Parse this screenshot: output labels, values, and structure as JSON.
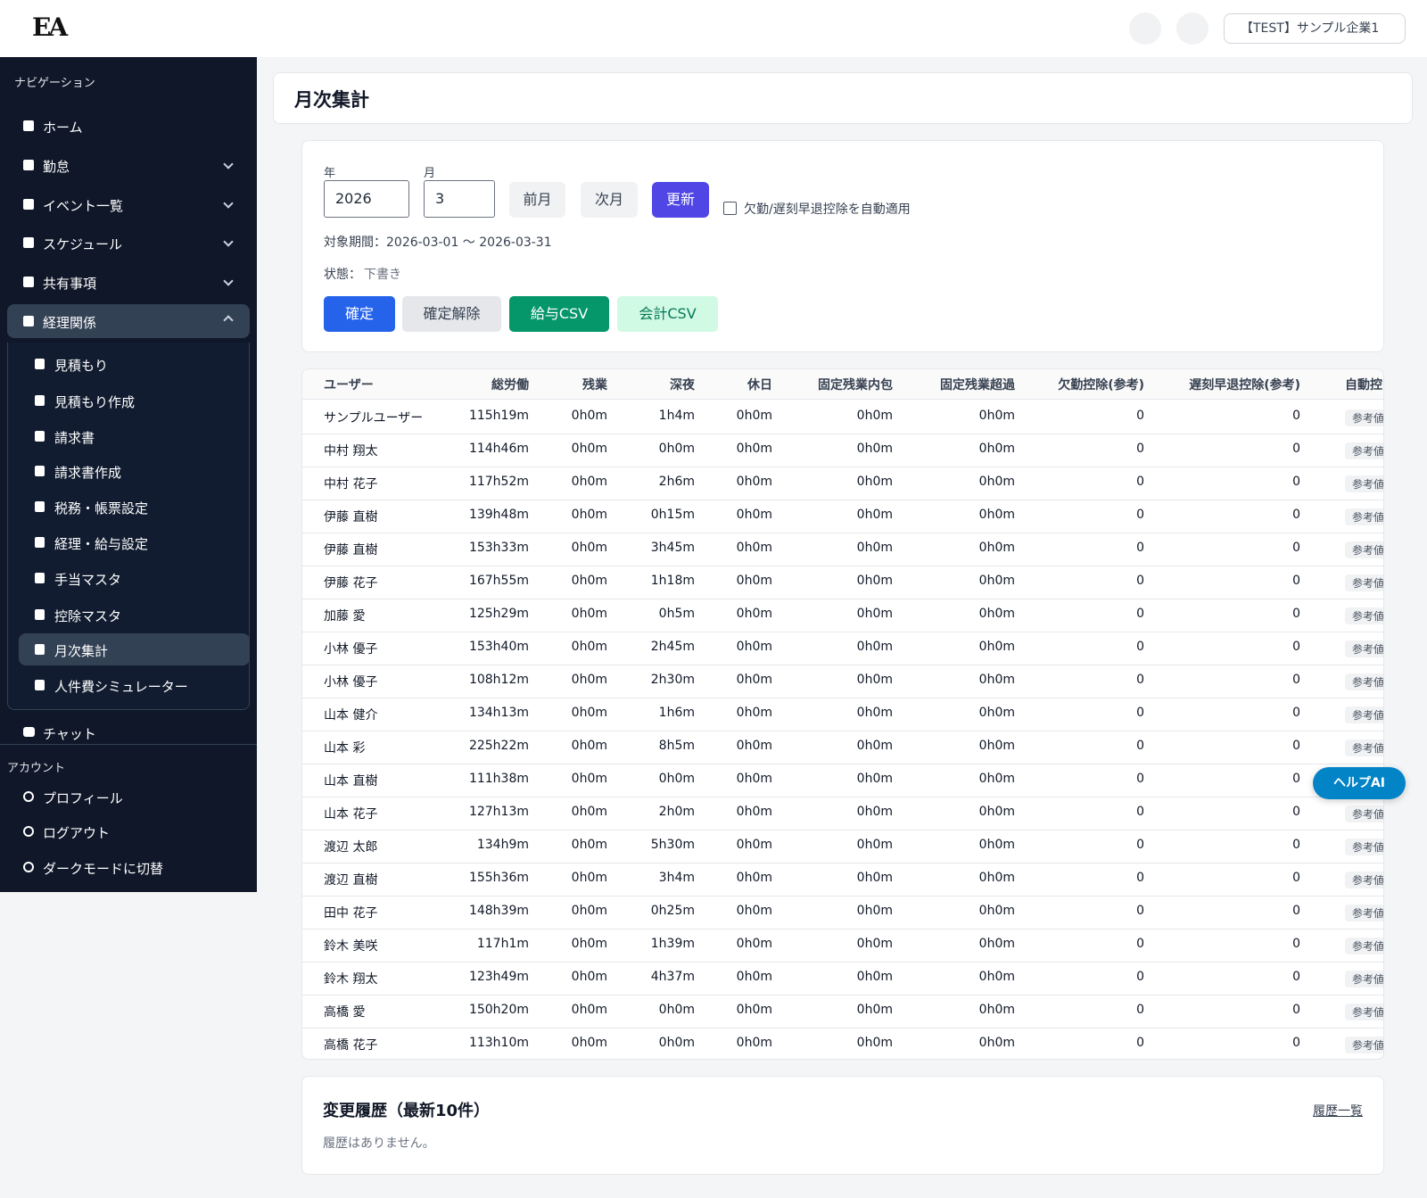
{
  "header": {
    "logo": "EA",
    "company": "【TEST】サンプル企業1"
  },
  "sidebar": {
    "title": "ナビゲーション",
    "items": [
      {
        "label": "ホーム"
      },
      {
        "label": "勤怠"
      },
      {
        "label": "イベント一覧"
      },
      {
        "label": "スケジュール"
      },
      {
        "label": "共有事項"
      },
      {
        "label": "経理関係"
      }
    ],
    "sub_items": [
      {
        "label": "見積もり"
      },
      {
        "label": "見積もり作成"
      },
      {
        "label": "請求書"
      },
      {
        "label": "請求書作成"
      },
      {
        "label": "税務・帳票設定"
      },
      {
        "label": "経理・給与設定"
      },
      {
        "label": "手当マスタ"
      },
      {
        "label": "控除マスタ"
      },
      {
        "label": "月次集計"
      },
      {
        "label": "人件費シミュレーター"
      }
    ],
    "chat": "チャット",
    "account_title": "アカウント",
    "account_items": [
      {
        "label": "プロフィール"
      },
      {
        "label": "ログアウト"
      },
      {
        "label": "ダークモードに切替"
      }
    ]
  },
  "page": {
    "title": "月次集計"
  },
  "form": {
    "year_label": "年",
    "year_value": "2026",
    "month_label": "月",
    "month_value": "3",
    "buttons": [
      "前月",
      "次月",
      "更新"
    ],
    "checkbox_label": "欠勤/遅刻早退控除を自動適用",
    "period": "対象期間：2026-03-01 〜 2026-03-31",
    "status_label": "状態：",
    "status_value": "下書き",
    "actions": [
      "確定",
      "確定解除",
      "給与CSV",
      "会計CSV"
    ]
  },
  "table": {
    "headers": [
      "ユーザー",
      "総労働",
      "残業",
      "深夜",
      "休日",
      "固定残業内包",
      "固定残業超過",
      "欠勤控除(参考)",
      "遅刻早退控除(参考)",
      "自動控"
    ],
    "rows": [
      [
        "サンプルユーザー",
        "115h19m",
        "0h0m",
        "1h4m",
        "0h0m",
        "0h0m",
        "0h0m",
        "0",
        "0",
        "参考値"
      ],
      [
        "中村 翔太",
        "114h46m",
        "0h0m",
        "0h0m",
        "0h0m",
        "0h0m",
        "0h0m",
        "0",
        "0",
        "参考値"
      ],
      [
        "中村 花子",
        "117h52m",
        "0h0m",
        "2h6m",
        "0h0m",
        "0h0m",
        "0h0m",
        "0",
        "0",
        "参考値"
      ],
      [
        "伊藤 直樹",
        "139h48m",
        "0h0m",
        "0h15m",
        "0h0m",
        "0h0m",
        "0h0m",
        "0",
        "0",
        "参考値"
      ],
      [
        "伊藤 直樹",
        "153h33m",
        "0h0m",
        "3h45m",
        "0h0m",
        "0h0m",
        "0h0m",
        "0",
        "0",
        "参考値"
      ],
      [
        "伊藤 花子",
        "167h55m",
        "0h0m",
        "1h18m",
        "0h0m",
        "0h0m",
        "0h0m",
        "0",
        "0",
        "参考値"
      ],
      [
        "加藤 愛",
        "125h29m",
        "0h0m",
        "0h5m",
        "0h0m",
        "0h0m",
        "0h0m",
        "0",
        "0",
        "参考値"
      ],
      [
        "小林 優子",
        "153h40m",
        "0h0m",
        "2h45m",
        "0h0m",
        "0h0m",
        "0h0m",
        "0",
        "0",
        "参考値"
      ],
      [
        "小林 優子",
        "108h12m",
        "0h0m",
        "2h30m",
        "0h0m",
        "0h0m",
        "0h0m",
        "0",
        "0",
        "参考値"
      ],
      [
        "山本 健介",
        "134h13m",
        "0h0m",
        "1h6m",
        "0h0m",
        "0h0m",
        "0h0m",
        "0",
        "0",
        "参考値"
      ],
      [
        "山本 彩",
        "225h22m",
        "0h0m",
        "8h5m",
        "0h0m",
        "0h0m",
        "0h0m",
        "0",
        "0",
        "参考値"
      ],
      [
        "山本 直樹",
        "111h38m",
        "0h0m",
        "0h0m",
        "0h0m",
        "0h0m",
        "0h0m",
        "0",
        "0",
        "参考値"
      ],
      [
        "山本 花子",
        "127h13m",
        "0h0m",
        "2h0m",
        "0h0m",
        "0h0m",
        "0h0m",
        "0",
        "0",
        "参考値"
      ],
      [
        "渡辺 太郎",
        "134h9m",
        "0h0m",
        "5h30m",
        "0h0m",
        "0h0m",
        "0h0m",
        "0",
        "0",
        "参考値"
      ],
      [
        "渡辺 直樹",
        "155h36m",
        "0h0m",
        "3h4m",
        "0h0m",
        "0h0m",
        "0h0m",
        "0",
        "0",
        "参考値"
      ],
      [
        "田中 花子",
        "148h39m",
        "0h0m",
        "0h25m",
        "0h0m",
        "0h0m",
        "0h0m",
        "0",
        "0",
        "参考値"
      ],
      [
        "鈴木 美咲",
        "117h1m",
        "0h0m",
        "1h39m",
        "0h0m",
        "0h0m",
        "0h0m",
        "0",
        "0",
        "参考値"
      ],
      [
        "鈴木 翔太",
        "123h49m",
        "0h0m",
        "4h37m",
        "0h0m",
        "0h0m",
        "0h0m",
        "0",
        "0",
        "参考値"
      ],
      [
        "高橋 愛",
        "150h20m",
        "0h0m",
        "0h0m",
        "0h0m",
        "0h0m",
        "0h0m",
        "0",
        "0",
        "参考値"
      ],
      [
        "高橋 花子",
        "113h10m",
        "0h0m",
        "0h0m",
        "0h0m",
        "0h0m",
        "0h0m",
        "0",
        "0",
        "参考値"
      ]
    ]
  },
  "history": {
    "title": "変更履歴（最新10件）",
    "link": "履歴一覧",
    "empty": "履歴はありません。"
  },
  "help": "ヘルプAI"
}
